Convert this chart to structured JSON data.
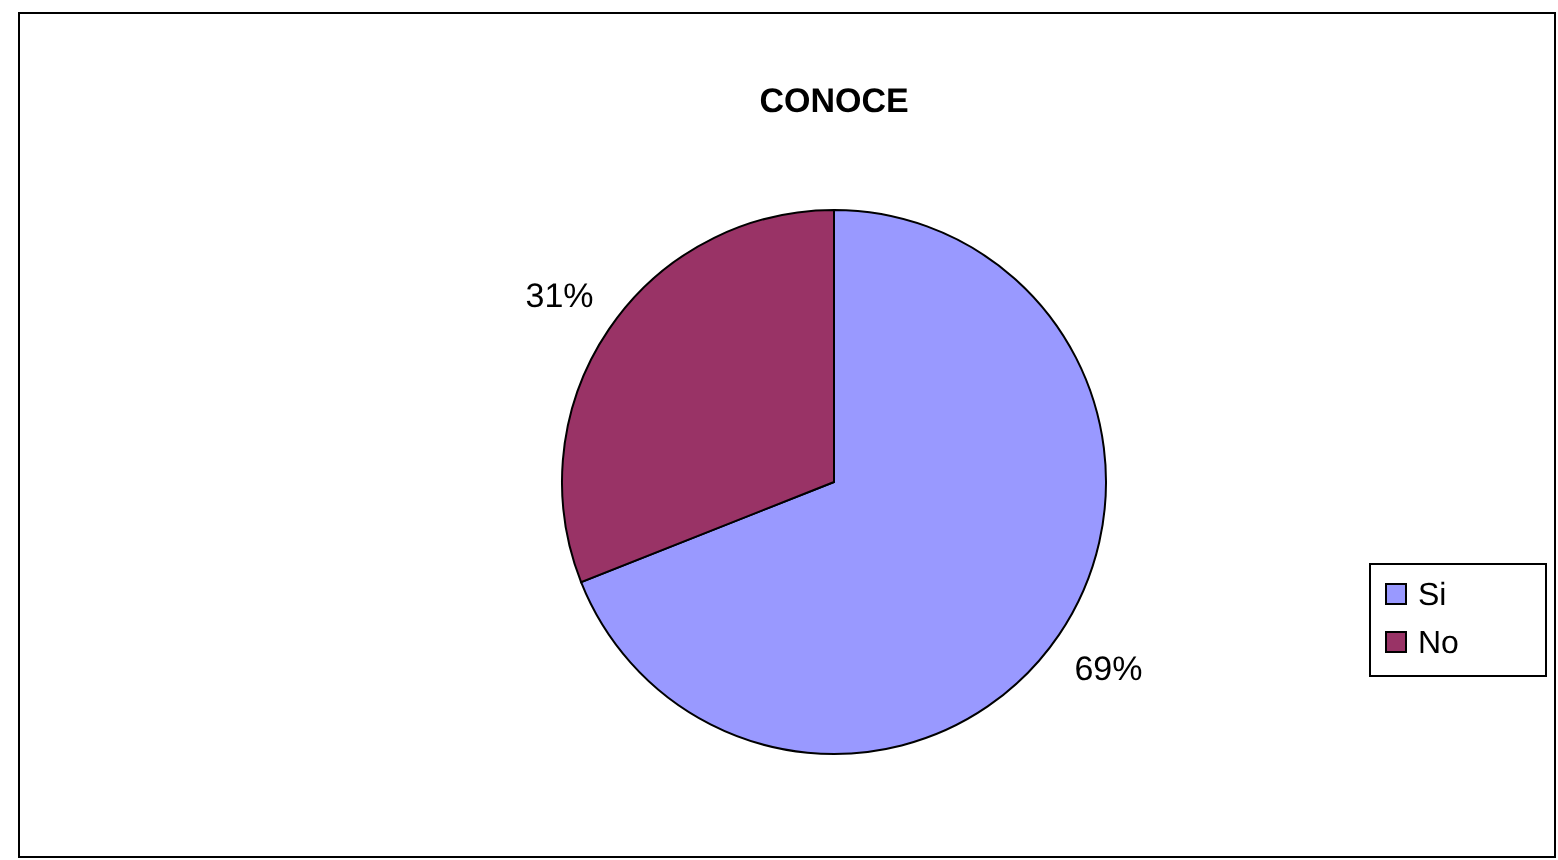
{
  "chart_data": {
    "type": "pie",
    "title": "CONOCE",
    "categories": [
      "Si",
      "No"
    ],
    "values": [
      69,
      31
    ],
    "colors": [
      "#9999ff",
      "#993366"
    ],
    "value_labels": [
      "69%",
      "31%"
    ],
    "legend": "right"
  }
}
